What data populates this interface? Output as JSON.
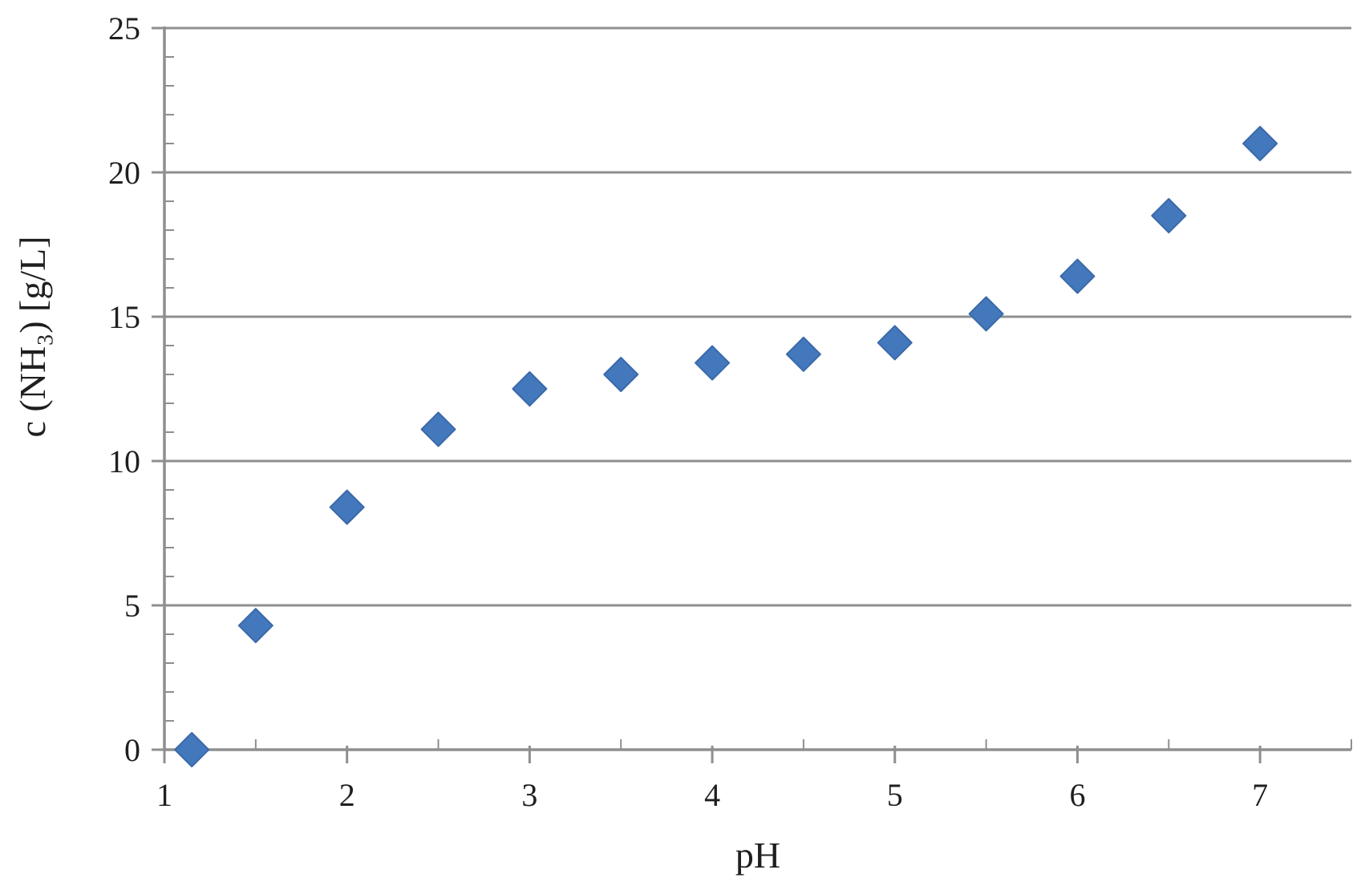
{
  "chart_data": {
    "type": "scatter",
    "title": "",
    "xlabel": "pH",
    "ylabel": "c (NH₃) [g/L]",
    "x": [
      1.15,
      1.5,
      2,
      2.5,
      3,
      3.5,
      4,
      4.5,
      5,
      5.5,
      6,
      6.5,
      7
    ],
    "y": [
      0,
      4.3,
      8.4,
      11.1,
      12.5,
      13.0,
      13.4,
      13.7,
      14.1,
      15.1,
      16.4,
      18.5,
      21.0
    ],
    "xlim": [
      1,
      7.5
    ],
    "ylim": [
      0,
      25
    ],
    "x_major_ticks": [
      1,
      2,
      3,
      4,
      5,
      6,
      7
    ],
    "x_minor_step": 0.5,
    "y_major_ticks": [
      0,
      5,
      10,
      15,
      20,
      25
    ],
    "y_minor_step": 1,
    "grid": "horizontal-major-only",
    "legend": "none",
    "marker": "diamond",
    "marker_color": "#4478BC",
    "marker_edge_color": "#3A69A9",
    "axis_color": "#8f8f8f",
    "text_color": "#1f1f1f",
    "background": "#ffffff"
  }
}
